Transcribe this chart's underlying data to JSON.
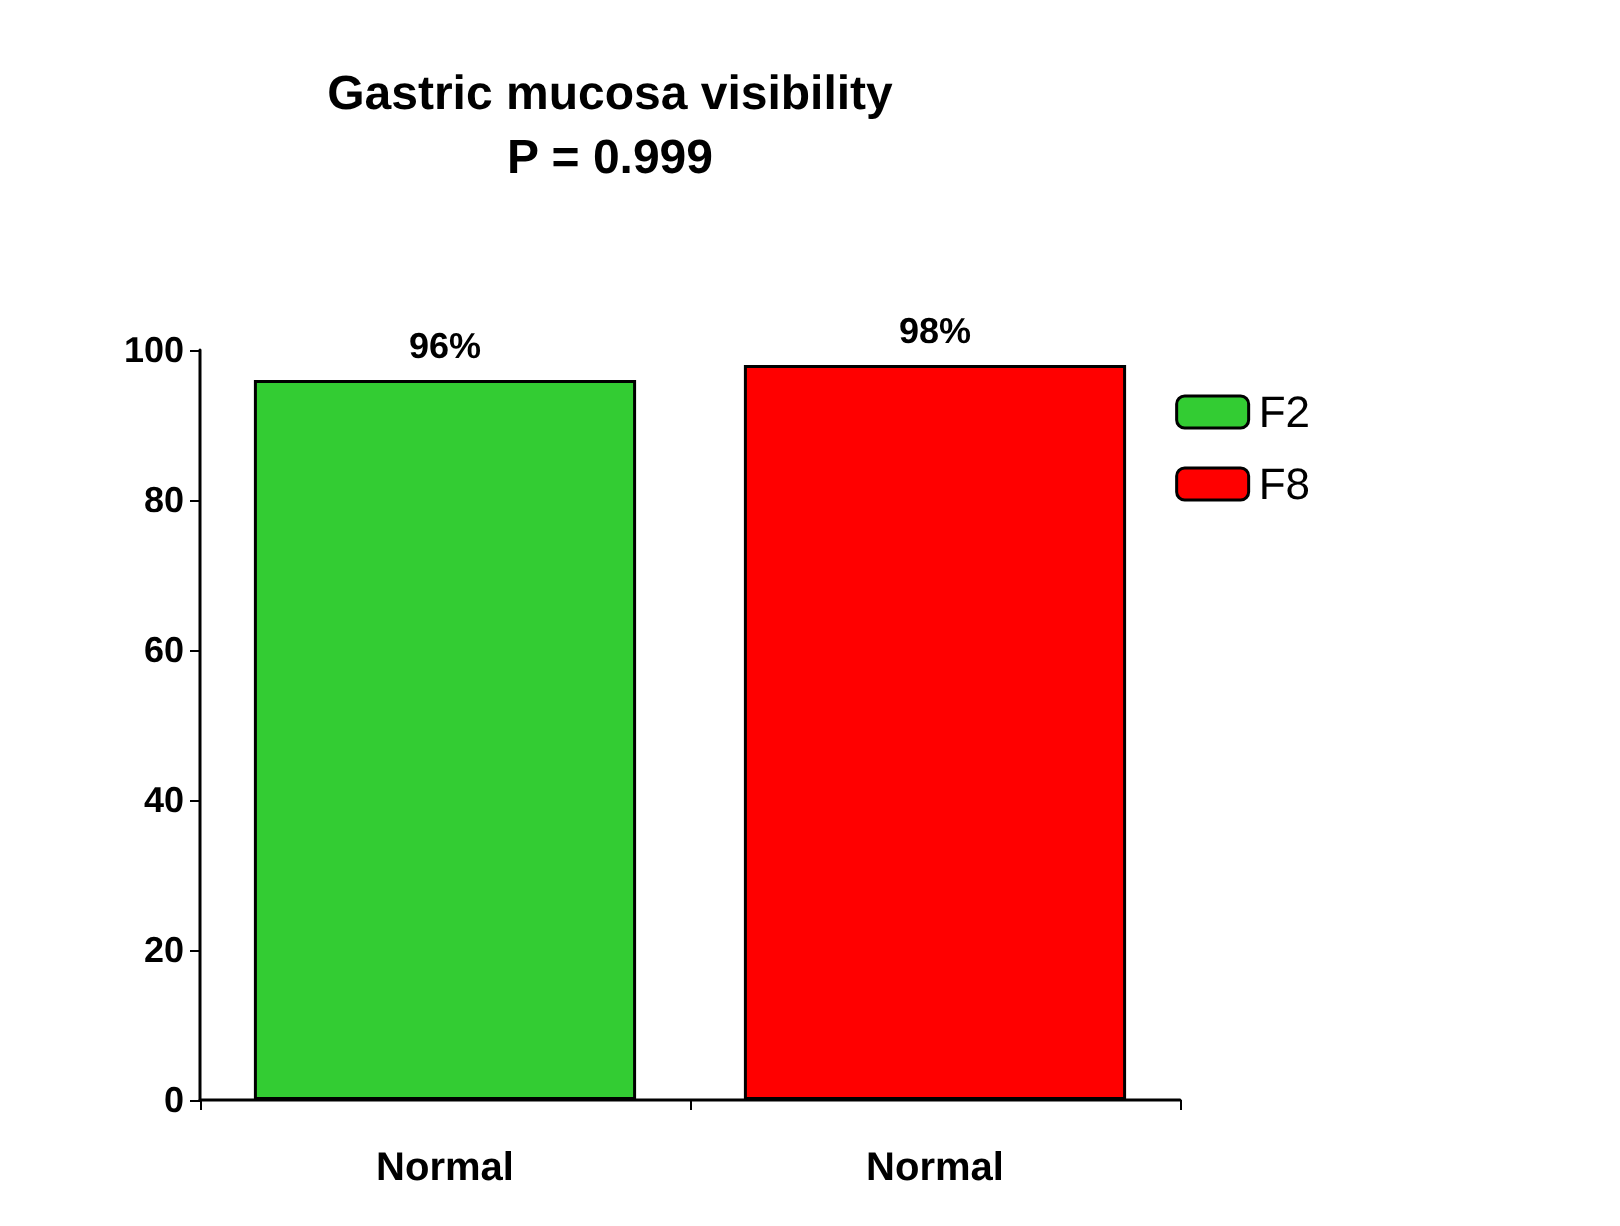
{
  "chart_data": {
    "type": "bar",
    "title": "Gastric mucosa visibility",
    "subtitle": "P = 0.999",
    "categories": [
      "Normal",
      "Normal"
    ],
    "series": [
      {
        "name": "F2",
        "color": "#33cc33",
        "values": [
          96,
          null
        ],
        "value_labels": [
          "96%",
          null
        ]
      },
      {
        "name": "F8",
        "color": "#ff0000",
        "values": [
          null,
          98
        ],
        "value_labels": [
          null,
          "98%"
        ]
      }
    ],
    "ylim": [
      0,
      100
    ],
    "yticks": [
      0,
      20,
      40,
      60,
      80,
      100
    ],
    "grid": false,
    "legend": "right"
  }
}
